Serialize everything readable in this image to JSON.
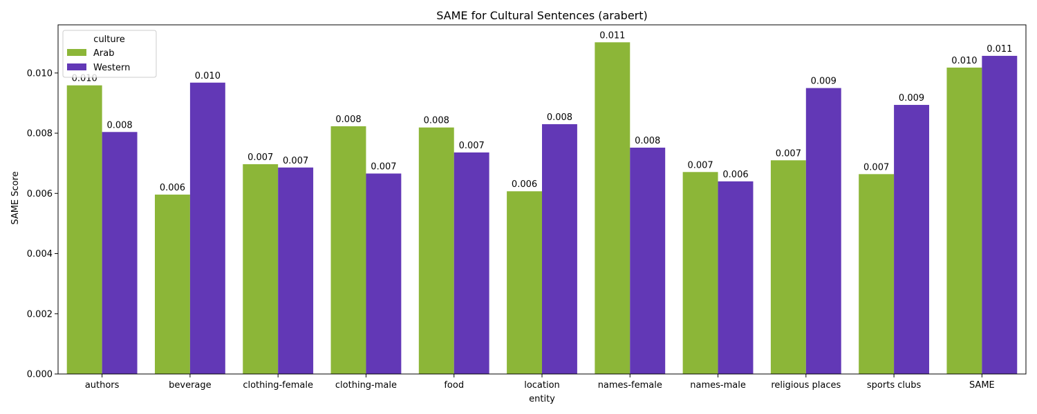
{
  "chart_data": {
    "type": "bar",
    "title": "SAME for Cultural Sentences (arabert)",
    "xlabel": "entity",
    "ylabel": "SAME Score",
    "ylim": [
      0,
      0.0116
    ],
    "yticks": [
      "0.000",
      "0.002",
      "0.004",
      "0.006",
      "0.008",
      "0.010"
    ],
    "ytick_values": [
      0,
      0.002,
      0.004,
      0.006,
      0.008,
      0.01
    ],
    "categories": [
      "authors",
      "beverage",
      "clothing-female",
      "clothing-male",
      "food",
      "location",
      "names-female",
      "names-male",
      "religious places",
      "sports clubs",
      "SAME"
    ],
    "legend": {
      "title": "culture",
      "placement": "top-left"
    },
    "series": [
      {
        "name": "Arab",
        "color": "#8cb638",
        "values": [
          0.00959,
          0.00596,
          0.00697,
          0.00823,
          0.00819,
          0.00607,
          0.01102,
          0.00671,
          0.0071,
          0.00664,
          0.01018
        ],
        "labels": [
          "0.010",
          "0.006",
          "0.007",
          "0.008",
          "0.008",
          "0.006",
          "0.011",
          "0.007",
          "0.007",
          "0.007",
          "0.010"
        ]
      },
      {
        "name": "Western",
        "color": "#6238b6",
        "values": [
          0.00804,
          0.00968,
          0.00686,
          0.00666,
          0.00736,
          0.0083,
          0.00752,
          0.0064,
          0.0095,
          0.00894,
          0.01057
        ],
        "labels": [
          "0.008",
          "0.010",
          "0.007",
          "0.007",
          "0.007",
          "0.008",
          "0.008",
          "0.006",
          "0.009",
          "0.009",
          "0.011"
        ]
      }
    ]
  }
}
